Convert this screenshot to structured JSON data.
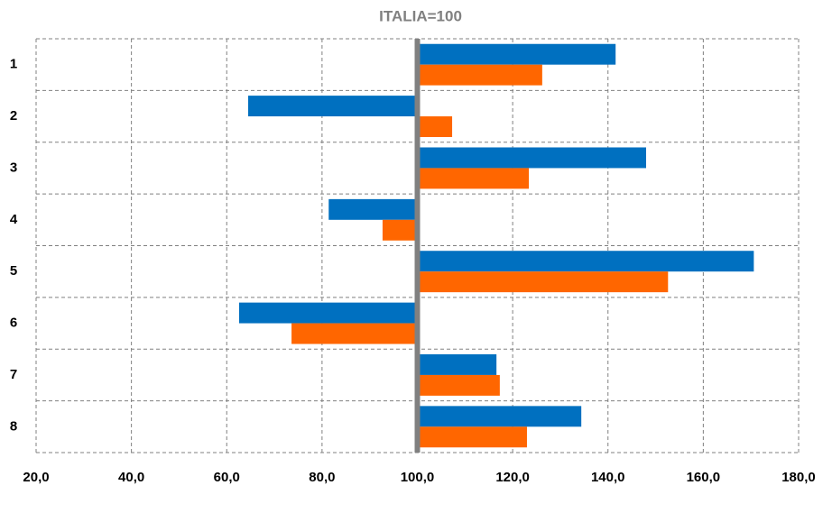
{
  "chart_data": {
    "type": "hbar",
    "title": "ITALIA=100",
    "categories": [
      "1",
      "2",
      "3",
      "4",
      "5",
      "6",
      "7",
      "8"
    ],
    "base": 100,
    "series": [
      {
        "color": "#0070c0",
        "values": [
          141.6,
          64.5,
          148.0,
          81.4,
          170.6,
          62.6,
          116.6,
          134.4
        ]
      },
      {
        "color": "#ff6600",
        "values": [
          126.2,
          107.3,
          123.4,
          92.7,
          152.6,
          73.6,
          117.3,
          123.0
        ]
      }
    ],
    "xlim": [
      20,
      180
    ],
    "xticks": [
      {
        "value": 20,
        "label": "20,0"
      },
      {
        "value": 40,
        "label": "40,0"
      },
      {
        "value": 60,
        "label": "60,0"
      },
      {
        "value": 80,
        "label": "80,0"
      },
      {
        "value": 100,
        "label": "100,0"
      },
      {
        "value": 120,
        "label": "120,0"
      },
      {
        "value": 140,
        "label": "140,0"
      },
      {
        "value": 160,
        "label": "160,0"
      },
      {
        "value": 180,
        "label": "180,0"
      }
    ],
    "grid": true
  }
}
